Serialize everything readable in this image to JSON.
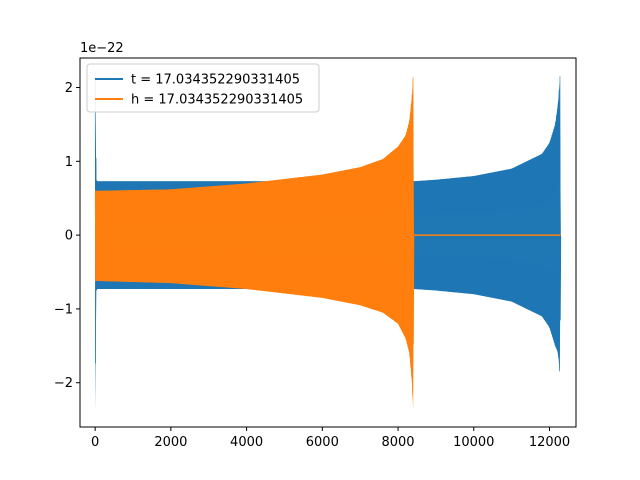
{
  "chart_data": {
    "type": "line",
    "title": "",
    "xlabel": "",
    "ylabel": "",
    "y_scale_label": "1e−22",
    "xlim": [
      -400,
      12700
    ],
    "ylim": [
      -2.6,
      2.4
    ],
    "xticks": [
      0,
      2000,
      4000,
      6000,
      8000,
      10000,
      12000
    ],
    "xtick_labels": [
      "0",
      "2000",
      "4000",
      "6000",
      "8000",
      "10000",
      "12000"
    ],
    "yticks": [
      2,
      1,
      0,
      -1,
      -2
    ],
    "ytick_labels": [
      "2",
      "1",
      "0",
      "−1",
      "−2"
    ],
    "grid": false,
    "legend_position": "top-left",
    "series": [
      {
        "name": "t = 17.034352290331405",
        "color": "#1f77b4",
        "envelope": {
          "x": [
            0,
            30,
            60,
            500,
            2000,
            4000,
            6000,
            8000,
            8420,
            9000,
            10000,
            11000,
            11800,
            12000,
            12150,
            12230,
            12280,
            12300
          ],
          "upper": [
            2.15,
            0.75,
            0.73,
            0.73,
            0.73,
            0.73,
            0.73,
            0.73,
            0.73,
            0.75,
            0.8,
            0.9,
            1.1,
            1.25,
            1.5,
            1.8,
            2.18,
            0
          ],
          "lower": [
            -2.38,
            -0.75,
            -0.73,
            -0.73,
            -0.73,
            -0.73,
            -0.73,
            -0.73,
            -0.73,
            -0.75,
            -0.8,
            -0.9,
            -1.1,
            -1.25,
            -1.5,
            -1.6,
            -1.95,
            0
          ]
        },
        "fill_region": [
          0,
          12300
        ]
      },
      {
        "name": "h = 17.034352290331405",
        "color": "#ff7f0e",
        "envelope": {
          "x": [
            0,
            2000,
            4000,
            6000,
            7000,
            7600,
            8000,
            8200,
            8300,
            8370,
            8400,
            8420
          ],
          "upper": [
            0.6,
            0.62,
            0.7,
            0.82,
            0.92,
            1.03,
            1.2,
            1.35,
            1.55,
            1.9,
            2.18,
            0
          ],
          "lower": [
            -0.62,
            -0.65,
            -0.73,
            -0.85,
            -0.95,
            -1.05,
            -1.2,
            -1.4,
            -1.6,
            -2.0,
            -2.38,
            0
          ]
        },
        "flat_segment": {
          "x": [
            8420,
            12300
          ],
          "y": 0
        }
      }
    ]
  }
}
